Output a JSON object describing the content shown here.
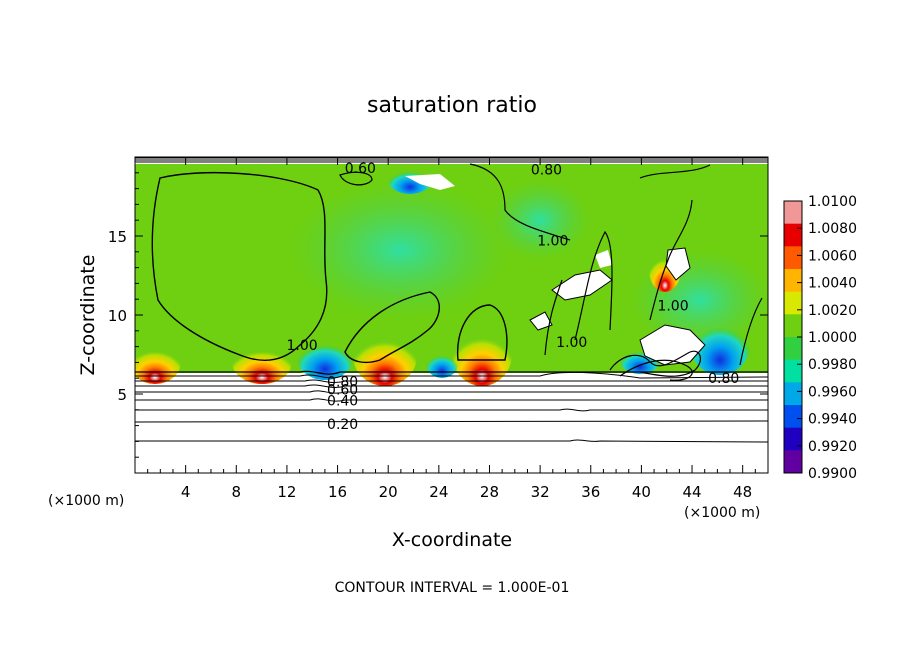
{
  "chart_data": {
    "type": "heatmap",
    "title": "saturation ratio",
    "xlabel": "X-coordinate",
    "ylabel": "Z-coordinate",
    "x_unit_left": "(×1000 m)",
    "x_unit_right": "(×1000 m)",
    "xlim": [
      0,
      50
    ],
    "ylim": [
      0,
      20
    ],
    "x_ticks": [
      4,
      8,
      12,
      16,
      20,
      24,
      28,
      32,
      36,
      40,
      44,
      48
    ],
    "y_ticks": [
      5,
      10,
      15
    ],
    "colorbar": {
      "levels": [
        "1.0100",
        "1.0080",
        "1.0060",
        "1.0040",
        "1.0020",
        "1.0000",
        "0.9980",
        "0.9960",
        "0.9940",
        "0.9920",
        "0.9900"
      ],
      "colors": [
        "#f09898",
        "#e80000",
        "#ff5a00",
        "#ffb400",
        "#d8e800",
        "#6ed010",
        "#30d040",
        "#00e0a0",
        "#00a8e8",
        "#0050f0",
        "#2000c0",
        "#6000a0"
      ]
    },
    "contour_labels": [
      {
        "text": "0.60",
        "x": 17.8,
        "y": 19.3
      },
      {
        "text": "0.80",
        "x": 32.5,
        "y": 19.2
      },
      {
        "text": "1.00",
        "x": 33.0,
        "y": 14.7
      },
      {
        "text": "1.00",
        "x": 13.2,
        "y": 8.1
      },
      {
        "text": "1.00",
        "x": 34.5,
        "y": 8.3
      },
      {
        "text": "1.00",
        "x": 42.5,
        "y": 10.6
      },
      {
        "text": "0.80",
        "x": 16.4,
        "y": 5.8
      },
      {
        "text": "0.60",
        "x": 16.4,
        "y": 5.3
      },
      {
        "text": "0.40",
        "x": 16.4,
        "y": 4.6
      },
      {
        "text": "0.20",
        "x": 16.4,
        "y": 3.1
      },
      {
        "text": "0.80",
        "x": 46.5,
        "y": 6.0
      }
    ],
    "footer": "CONTOUR INTERVAL = 1.000E-01"
  }
}
